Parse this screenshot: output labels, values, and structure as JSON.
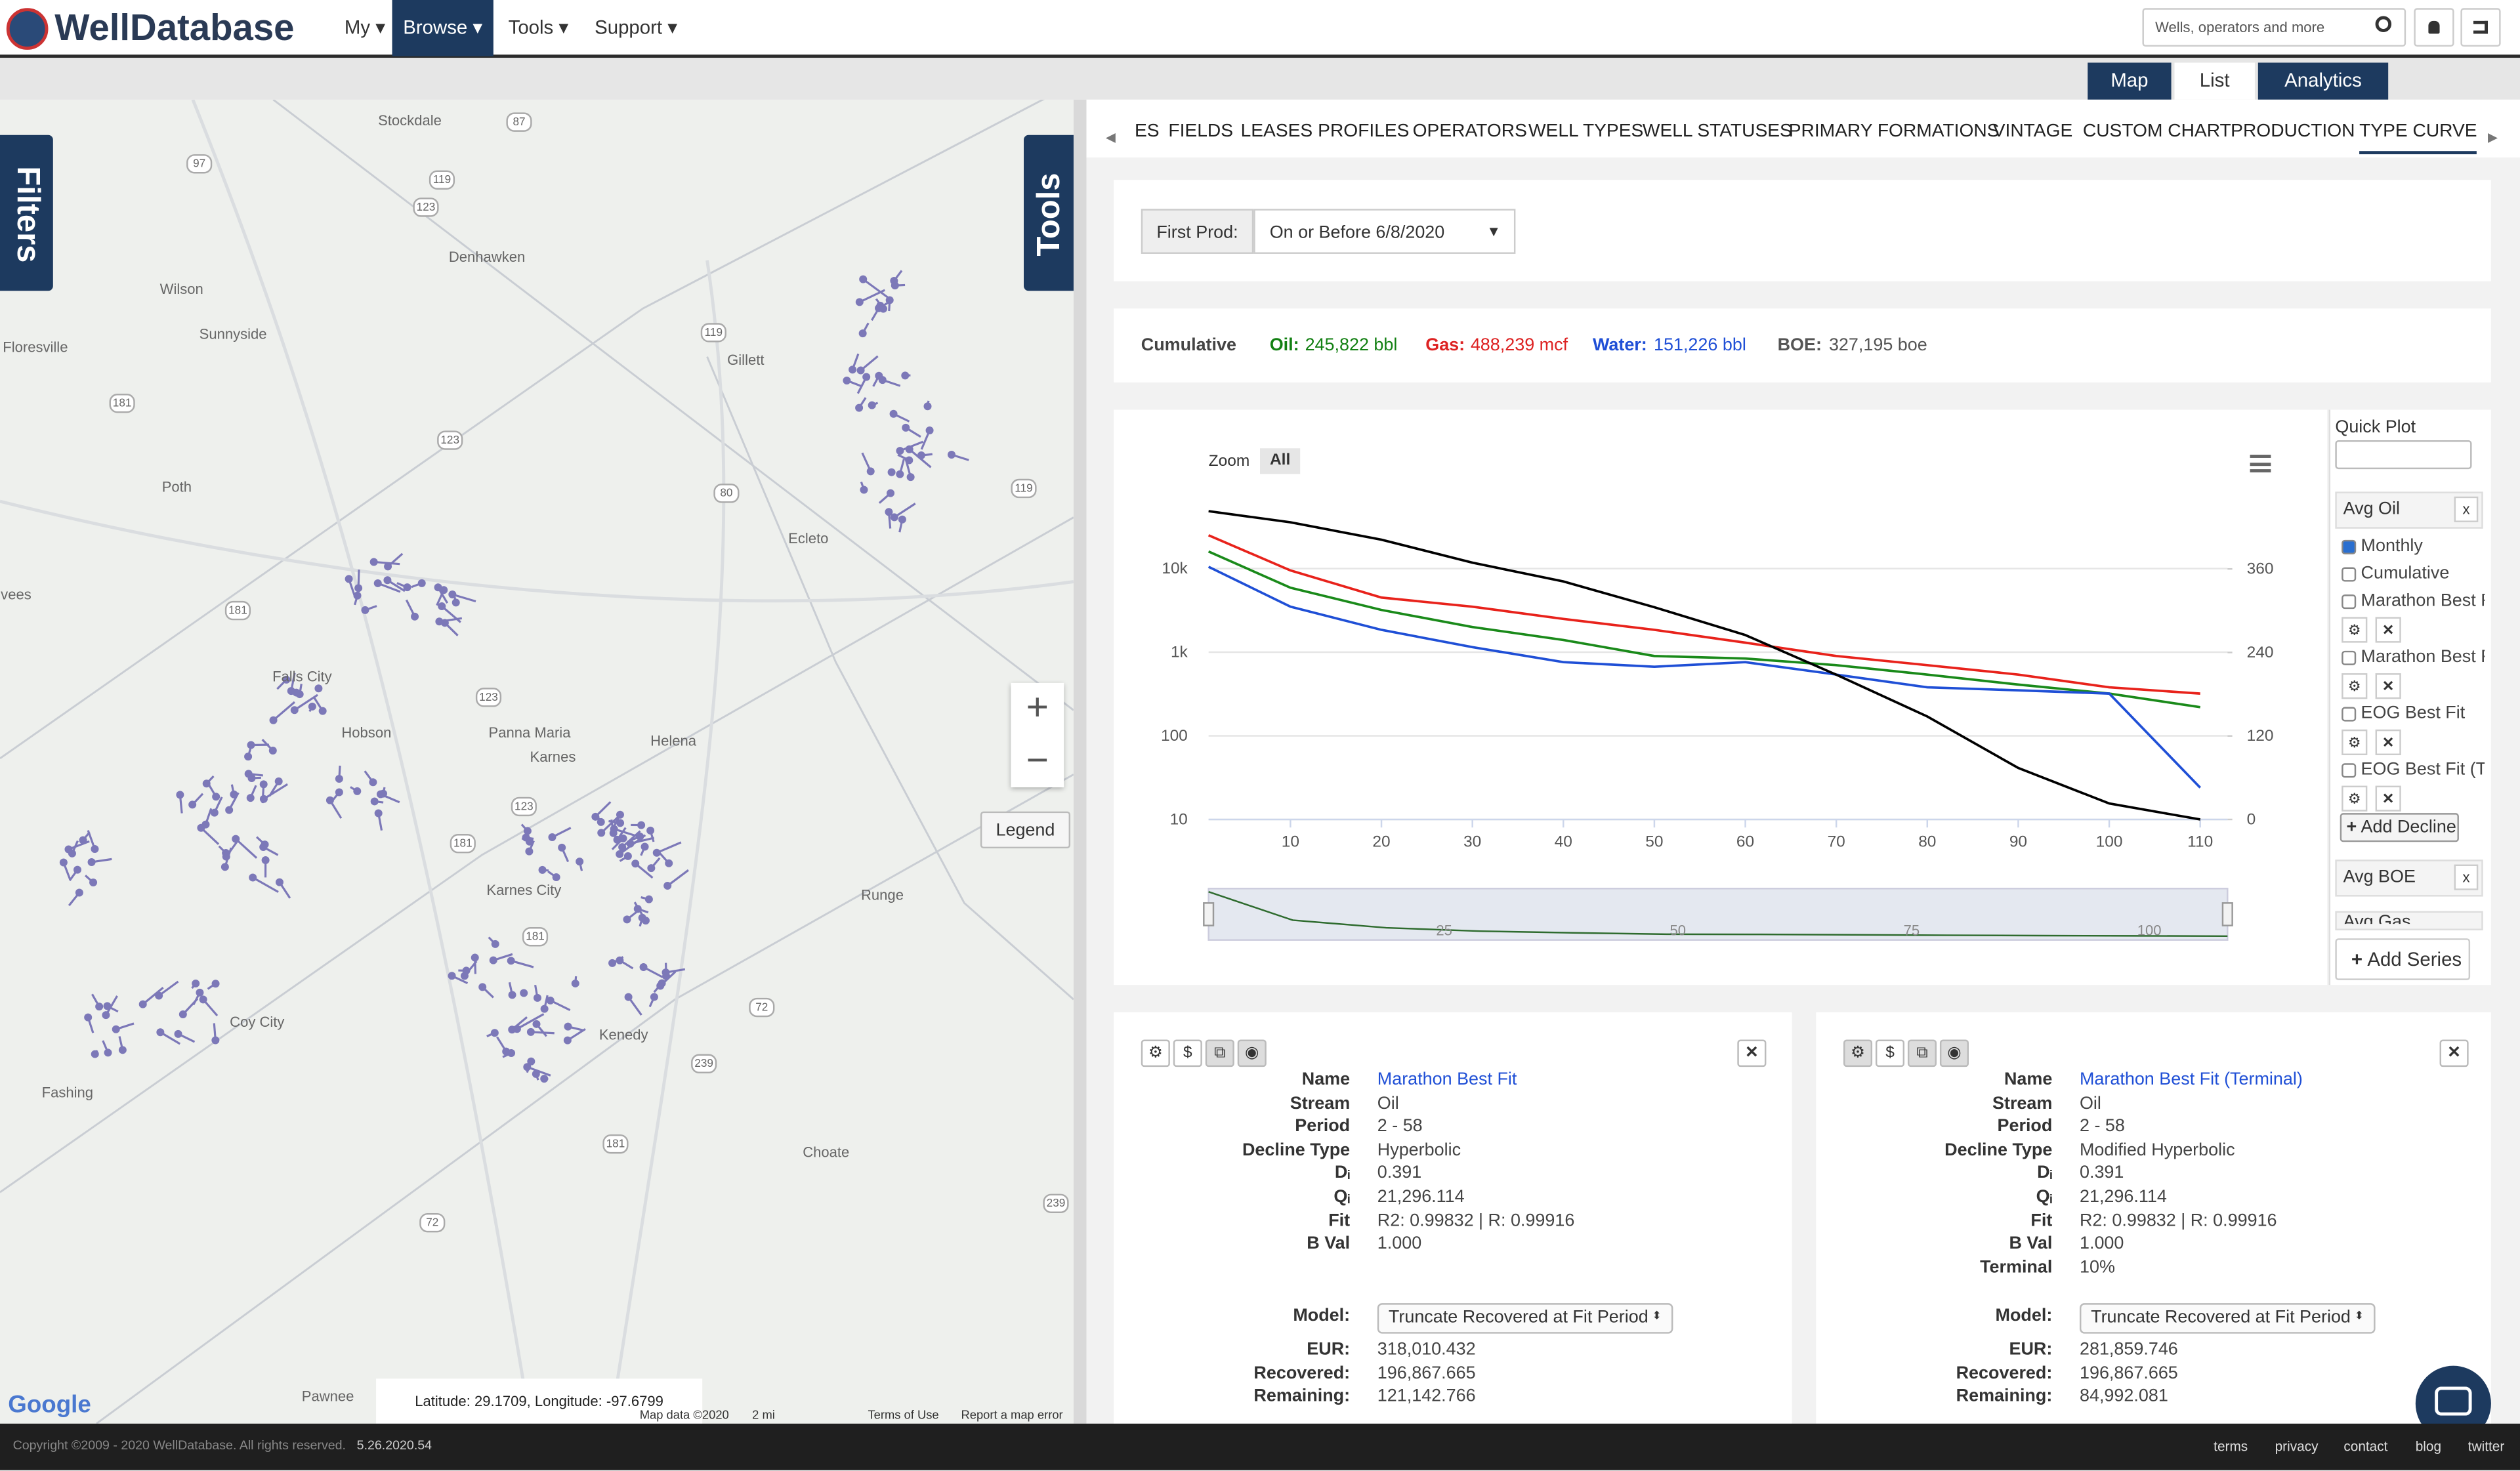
{
  "header": {
    "logo": "WellDatabase",
    "nav": [
      "My",
      "Browse",
      "Tools",
      "Support"
    ],
    "search_placeholder": "Wells, operators and more"
  },
  "view_tabs": [
    "Map",
    "List",
    "Analytics"
  ],
  "map": {
    "filters": "Filters",
    "tools": "Tools",
    "legend": "Legend",
    "google": "Google",
    "places": [
      "Stockdale",
      "Denhawken",
      "Wilson",
      "Sunnyside",
      "Floresville",
      "Gillett",
      "Poth",
      "Ecleto",
      "vees",
      "Falls City",
      "Hobson",
      "Panna Maria",
      "Karnes",
      "Helena",
      "Karnes City",
      "Runge",
      "Coy City",
      "Kenedy",
      "Fashing",
      "Choate",
      "Pawnee"
    ],
    "roads": [
      "87",
      "97",
      "119",
      "123",
      "119",
      "181",
      "123",
      "80",
      "119",
      "181",
      "123",
      "123",
      "181",
      "181",
      "72",
      "239",
      "181",
      "72",
      "239"
    ],
    "coords": "Latitude: 29.1709, Longitude: -97.6799",
    "attribution": [
      "Map data ©2020",
      "2 mi",
      "Terms of Use",
      "Report a map error"
    ]
  },
  "tabs": [
    "ES",
    "FIELDS",
    "LEASES",
    "PROFILES",
    "OPERATORS",
    "WELL TYPES",
    "WELL STATUSES",
    "PRIMARY FORMATIONS",
    "VINTAGE",
    "CUSTOM CHART",
    "PRODUCTION",
    "TYPE CURVE"
  ],
  "filter": {
    "label": "First Prod:",
    "value": "On or Before 6/8/2020"
  },
  "cumulative": {
    "title": "Cumulative",
    "oil_label": "Oil:",
    "oil": "245,822 bbl",
    "gas_label": "Gas:",
    "gas": "488,239 mcf",
    "water_label": "Water:",
    "water": "151,226 bbl",
    "boe_label": "BOE:",
    "boe": "327,195 boe"
  },
  "chart_data": {
    "type": "line",
    "zoom_label": "Zoom",
    "zoom_all": "All",
    "log_scale": true,
    "grid": true,
    "x": [
      1,
      10,
      20,
      30,
      40,
      50,
      60,
      70,
      80,
      90,
      100,
      110
    ],
    "series": [
      {
        "color": "#e8221b",
        "values": [
          25000,
          9500,
          4500,
          3500,
          2500,
          1850,
          1300,
          900,
          700,
          540,
          380,
          320
        ]
      },
      {
        "color": "#1a8a1a",
        "values": [
          16000,
          5900,
          3200,
          2000,
          1400,
          900,
          840,
          700,
          540,
          410,
          320,
          220
        ]
      },
      {
        "color": "#1f4fd6",
        "values": [
          10500,
          3500,
          1850,
          1150,
          760,
          670,
          760,
          540,
          380,
          350,
          320,
          24
        ]
      },
      {
        "color": "#000000",
        "axis": "y2",
        "values": [
          443,
          427,
          402,
          369,
          342,
          305,
          265,
          208,
          148,
          74,
          23,
          0
        ]
      }
    ],
    "xlim": [
      1,
      113
    ],
    "xticks": [
      10,
      20,
      30,
      40,
      50,
      60,
      70,
      80,
      90,
      100,
      110
    ],
    "ylim": [
      10,
      83000
    ],
    "yticks": [
      {
        "value": 10000,
        "label": "10k"
      },
      {
        "value": 1000,
        "label": "1k"
      },
      100,
      10
    ],
    "y2lim": [
      0,
      471
    ],
    "y2ticks": [
      360,
      240,
      120,
      0
    ],
    "navigator": {
      "xlim": [
        1,
        110
      ],
      "xticks": [
        25,
        50,
        75,
        100
      ]
    }
  },
  "side_panel": {
    "quick_plot": "Quick Plot",
    "avg_oil": "Avg Oil",
    "options": [
      "Monthly",
      "Cumulative",
      "Marathon Best Fit",
      "Marathon Best Fit (Terminal)",
      "EOG Best Fit",
      "EOG Best Fit (Terminal)"
    ],
    "add_decline": "Add Decline",
    "avg_boe": "Avg BOE",
    "avg_gas": "Avg Gas",
    "add_series": "Add Series"
  },
  "cards": [
    {
      "fields": [
        {
          "label": "Name",
          "value": "Marathon Best Fit"
        },
        {
          "label": "Stream",
          "value": "Oil"
        },
        {
          "label": "Period",
          "value": "2 - 58"
        },
        {
          "label": "Decline Type",
          "value": "Hyperbolic"
        },
        {
          "label": "Dᵢ",
          "value": "0.391"
        },
        {
          "label": "Qᵢ",
          "value": "21,296.114"
        },
        {
          "label": "Fit",
          "value": "R2: 0.99832 | R: 0.99916"
        },
        {
          "label": "B Val",
          "value": "1.000"
        }
      ],
      "model_label": "Model:",
      "model": "Truncate Recovered at Fit Period",
      "results": [
        {
          "label": "EUR:",
          "value": "318,010.432"
        },
        {
          "label": "Recovered:",
          "value": "196,867.665"
        },
        {
          "label": "Remaining:",
          "value": "121,142.766"
        }
      ]
    },
    {
      "fields": [
        {
          "label": "Name",
          "value": "Marathon Best Fit (Terminal)"
        },
        {
          "label": "Stream",
          "value": "Oil"
        },
        {
          "label": "Period",
          "value": "2 - 58"
        },
        {
          "label": "Decline Type",
          "value": "Modified Hyperbolic"
        },
        {
          "label": "Dᵢ",
          "value": "0.391"
        },
        {
          "label": "Qᵢ",
          "value": "21,296.114"
        },
        {
          "label": "Fit",
          "value": "R2: 0.99832 | R: 0.99916"
        },
        {
          "label": "B Val",
          "value": "1.000"
        },
        {
          "label": "Terminal",
          "value": "10%"
        }
      ],
      "model_label": "Model:",
      "model": "Truncate Recovered at Fit Period",
      "results": [
        {
          "label": "EUR:",
          "value": "281,859.746"
        },
        {
          "label": "Recovered:",
          "value": "196,867.665"
        },
        {
          "label": "Remaining:",
          "value": "84,992.081"
        }
      ]
    }
  ],
  "footer": {
    "copyright": "Copyright ©2009 - 2020 WellDatabase. All rights reserved.",
    "version": "5.26.2020.54",
    "links": [
      "terms",
      "privacy",
      "contact",
      "blog",
      "twitter"
    ]
  }
}
